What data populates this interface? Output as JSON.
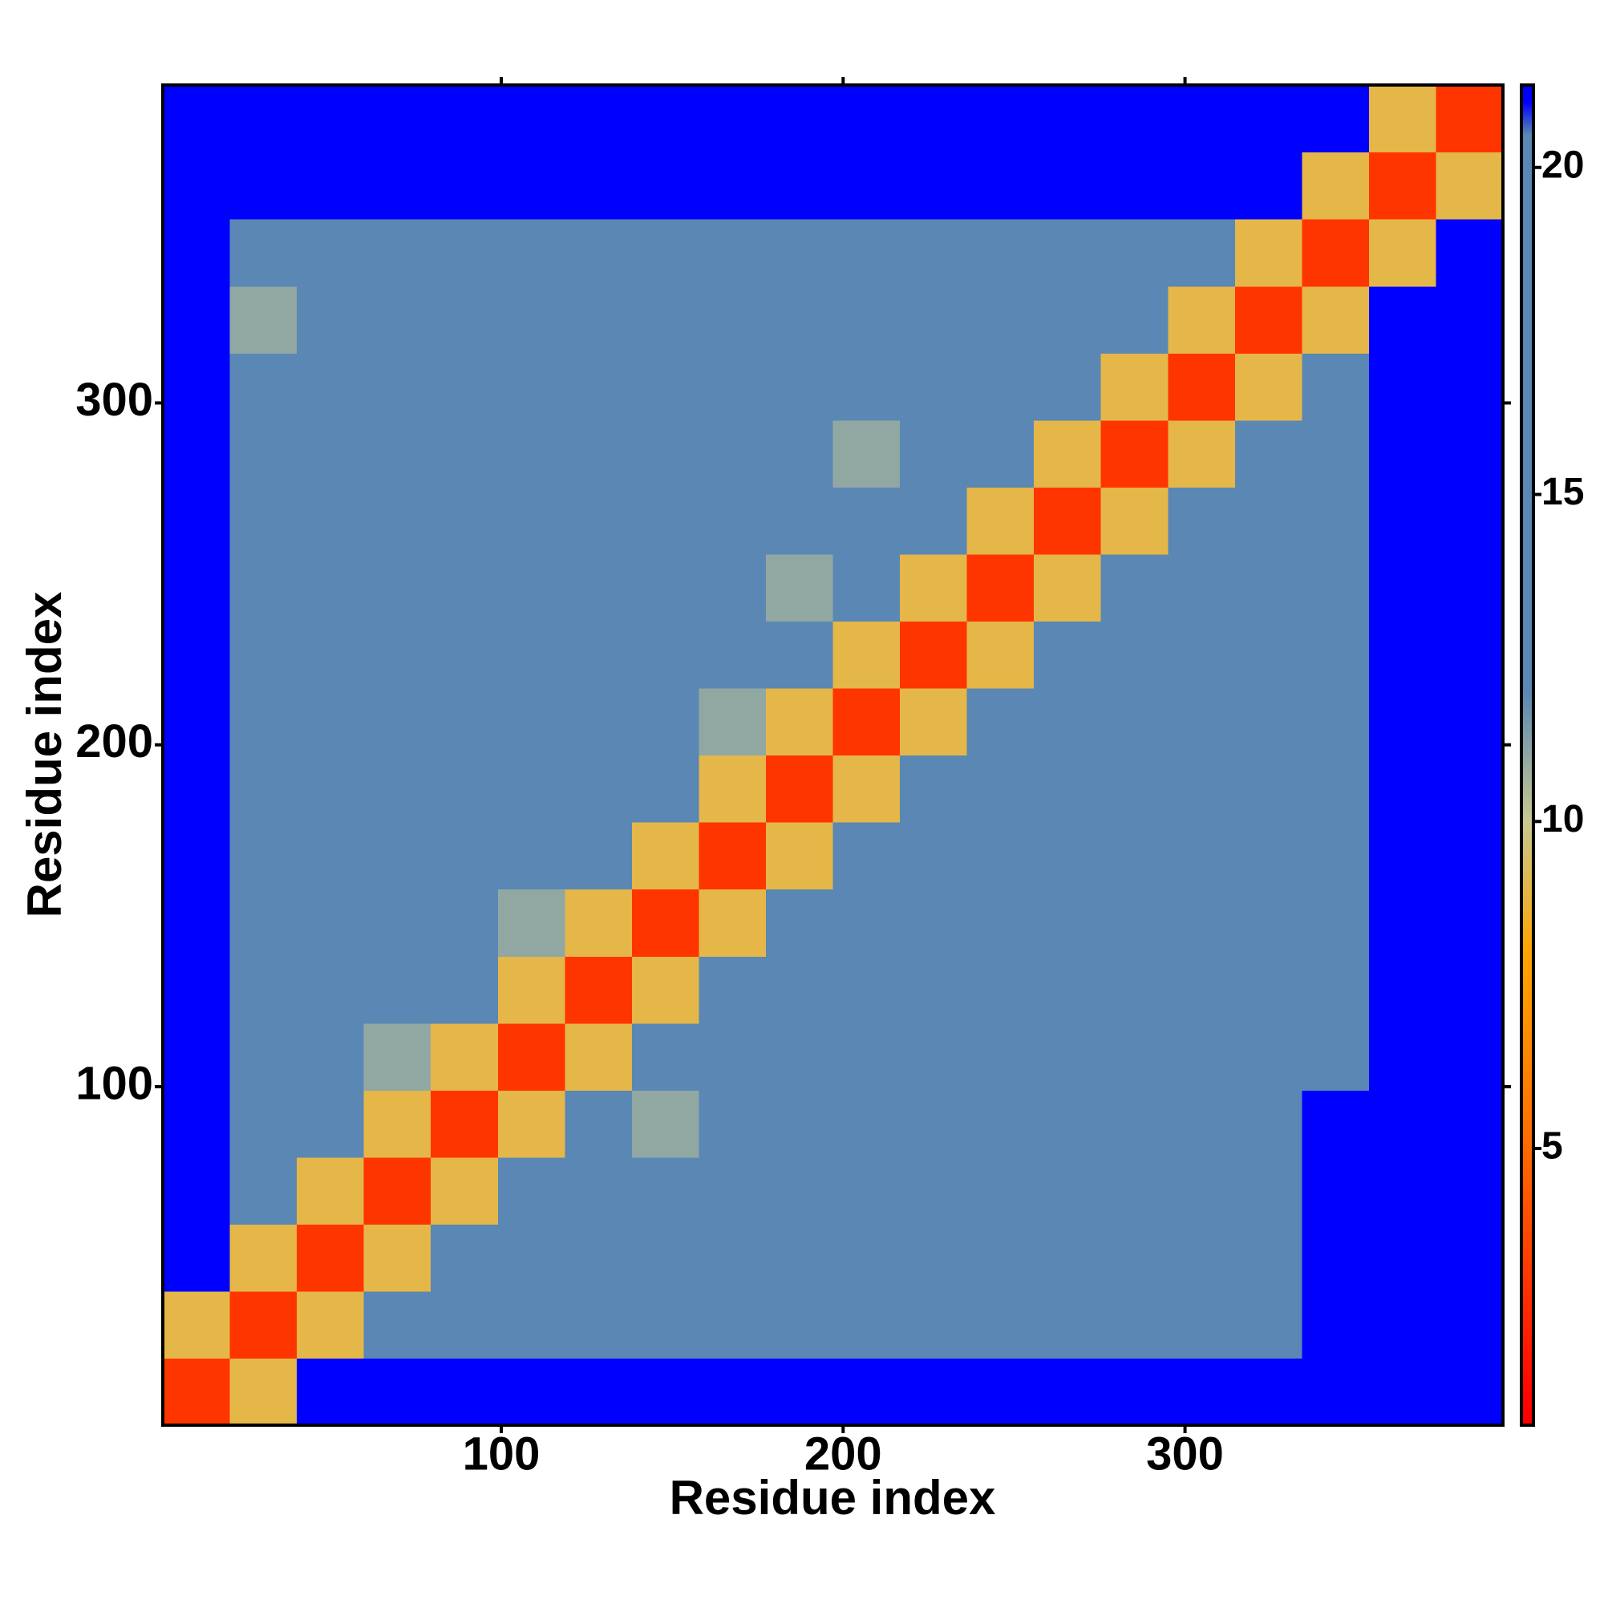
{
  "chart_data": {
    "type": "heatmap",
    "xlabel": "Residue index",
    "ylabel": "Residue index",
    "xlim": [
      1,
      393
    ],
    "ylim": [
      1,
      393
    ],
    "xticks": [
      100,
      200,
      300
    ],
    "yticks": [
      100,
      200,
      300
    ],
    "clim": [
      0.77,
      21.26
    ],
    "cticks": [
      5,
      10,
      15,
      20
    ],
    "colorscale": [
      [
        1,
        "#ff0000"
      ],
      [
        5,
        "#ff6a00"
      ],
      [
        8,
        "#ffa500"
      ],
      [
        10,
        "#c8c890"
      ],
      [
        12,
        "#5a87b4"
      ],
      [
        20.5,
        "#5a87b4"
      ],
      [
        21,
        "#0000ff"
      ]
    ],
    "z": [
      [
        3,
        9,
        21,
        21,
        21,
        21,
        21,
        21,
        21,
        21,
        21,
        21,
        21,
        21,
        21,
        21,
        21,
        21,
        21,
        21
      ],
      [
        9,
        3,
        9,
        16,
        16,
        17,
        16,
        17,
        16,
        17,
        18,
        20,
        16,
        14,
        17,
        12,
        16,
        21,
        21,
        21
      ],
      [
        21,
        9,
        3,
        9,
        14,
        15,
        16,
        15,
        16,
        17,
        19,
        18,
        17,
        17,
        18,
        17,
        19,
        21,
        21,
        21
      ],
      [
        21,
        15,
        9,
        3,
        9,
        13,
        18,
        14,
        12,
        16,
        17,
        16,
        17,
        16,
        17,
        18,
        19,
        21,
        21,
        21
      ],
      [
        21,
        15,
        14,
        9,
        3,
        9,
        12,
        11,
        15,
        16,
        16,
        17,
        17,
        16,
        17,
        18,
        18,
        21,
        21,
        21
      ],
      [
        21,
        16,
        13,
        11,
        9,
        3,
        9,
        18,
        14,
        15,
        16,
        17,
        16,
        16,
        18,
        17,
        18,
        20,
        21,
        21
      ],
      [
        21,
        15,
        15,
        13,
        12,
        9,
        3,
        9,
        13,
        16,
        16,
        17,
        16,
        17,
        17,
        18,
        18,
        19,
        21,
        21
      ],
      [
        21,
        16,
        18,
        14,
        15,
        11,
        9,
        3,
        9,
        16,
        15,
        17,
        17,
        18,
        17,
        18,
        19,
        20,
        21,
        21
      ],
      [
        21,
        17,
        15,
        16,
        16,
        16,
        15,
        9,
        3,
        9,
        13,
        16,
        17,
        18,
        17,
        17,
        18,
        20,
        21,
        21
      ],
      [
        21,
        16,
        16,
        17,
        15,
        16,
        17,
        16,
        9,
        3,
        9,
        14,
        12,
        13,
        13,
        12,
        12,
        15,
        21,
        21
      ],
      [
        21,
        15,
        16,
        16,
        17,
        16,
        17,
        16,
        11,
        9,
        3,
        9,
        12,
        14,
        12,
        14,
        13,
        16,
        21,
        21
      ],
      [
        21,
        16,
        17,
        16,
        15,
        16,
        16,
        17,
        14,
        12,
        9,
        3,
        9,
        12,
        14,
        13,
        15,
        16,
        21,
        21
      ],
      [
        21,
        16,
        15,
        16,
        17,
        15,
        18,
        16,
        15,
        11,
        13,
        9,
        3,
        9,
        13,
        14,
        13,
        16,
        21,
        21
      ],
      [
        21,
        16,
        16,
        17,
        16,
        16,
        15,
        16,
        16,
        14,
        13,
        12,
        9,
        3,
        9,
        12,
        14,
        13,
        21,
        21
      ],
      [
        21,
        15,
        17,
        16,
        17,
        16,
        17,
        17,
        15,
        12,
        11,
        14,
        13,
        9,
        3,
        9,
        14,
        15,
        21,
        21
      ],
      [
        21,
        16,
        16,
        17,
        16,
        17,
        16,
        16,
        17,
        12,
        14,
        14,
        13,
        12,
        9,
        3,
        9,
        14,
        21,
        21
      ],
      [
        21,
        11,
        16,
        17,
        17,
        16,
        18,
        17,
        16,
        13,
        15,
        14,
        12,
        14,
        12,
        9,
        3,
        9,
        21,
        21
      ],
      [
        21,
        17,
        19,
        19,
        19,
        19,
        19,
        19,
        18,
        16,
        16,
        16,
        16,
        16,
        16,
        16,
        9,
        3,
        9,
        21
      ],
      [
        21,
        21,
        21,
        21,
        21,
        21,
        21,
        21,
        21,
        21,
        21,
        21,
        21,
        21,
        21,
        21,
        21,
        9,
        3,
        9
      ],
      [
        21,
        21,
        21,
        21,
        21,
        21,
        21,
        21,
        21,
        21,
        21,
        21,
        21,
        21,
        21,
        21,
        21,
        21,
        9,
        3
      ]
    ]
  }
}
